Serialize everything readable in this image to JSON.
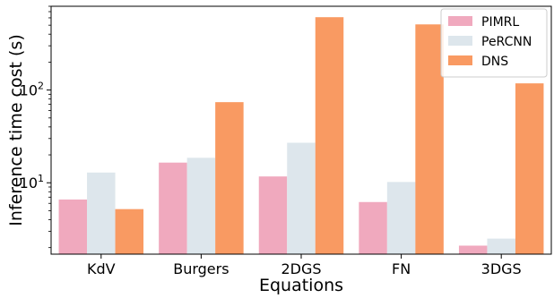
{
  "chart_data": {
    "type": "bar",
    "xlabel": "Equations",
    "ylabel": "Inference time cost (s)",
    "categories": [
      "KdV",
      "Burgers",
      "2DGS",
      "FN",
      "3DGS"
    ],
    "yscale": "log",
    "ylim": [
      1.7,
      800
    ],
    "yticks": [
      {
        "value": 10,
        "base": "10",
        "exp": "1"
      },
      {
        "value": 100,
        "base": "10",
        "exp": "2"
      }
    ],
    "grid": false,
    "legend_position": "top-right",
    "series": [
      {
        "name": "PIMRL",
        "color": "#f0a9be",
        "values": [
          6.6,
          16.5,
          11.7,
          6.2,
          2.1
        ]
      },
      {
        "name": "PeRCNN",
        "color": "#dde6ec",
        "values": [
          12.9,
          18.6,
          27.0,
          10.2,
          2.5
        ]
      },
      {
        "name": "DNS",
        "color": "#f99a62",
        "values": [
          5.2,
          74.0,
          610.0,
          510.0,
          118.0
        ]
      }
    ]
  }
}
